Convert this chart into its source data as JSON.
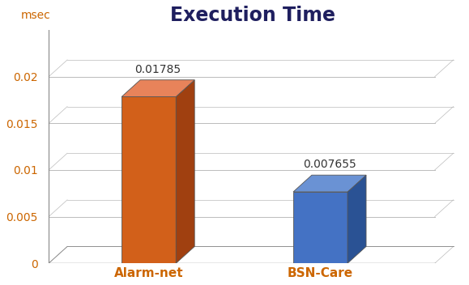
{
  "title": "Execution Time",
  "ylabel": "msec",
  "categories": [
    "Alarm-net",
    "BSN-Care"
  ],
  "values": [
    0.01785,
    0.007655
  ],
  "bar_colors": [
    "#D2601A",
    "#4472C4"
  ],
  "bar_top_colors": [
    "#E8835A",
    "#6A92D4"
  ],
  "bar_side_colors": [
    "#A04010",
    "#2A5294"
  ],
  "ylim": [
    0,
    0.025
  ],
  "yticks": [
    0,
    0.005,
    0.01,
    0.015,
    0.02
  ],
  "ytick_labels": [
    "0",
    "0.005",
    "0.01",
    "0.015",
    "0.02"
  ],
  "value_labels": [
    "0.01785",
    "0.007655"
  ],
  "background_color": "#ffffff",
  "title_fontsize": 17,
  "title_fontweight": "bold",
  "label_fontsize": 11,
  "tick_fontsize": 10,
  "value_fontsize": 10,
  "ylabel_fontsize": 10,
  "bar_width": 0.38,
  "tick_color": "#CC6600",
  "label_color": "#CC6600",
  "grid_color": "#BBBBBB"
}
